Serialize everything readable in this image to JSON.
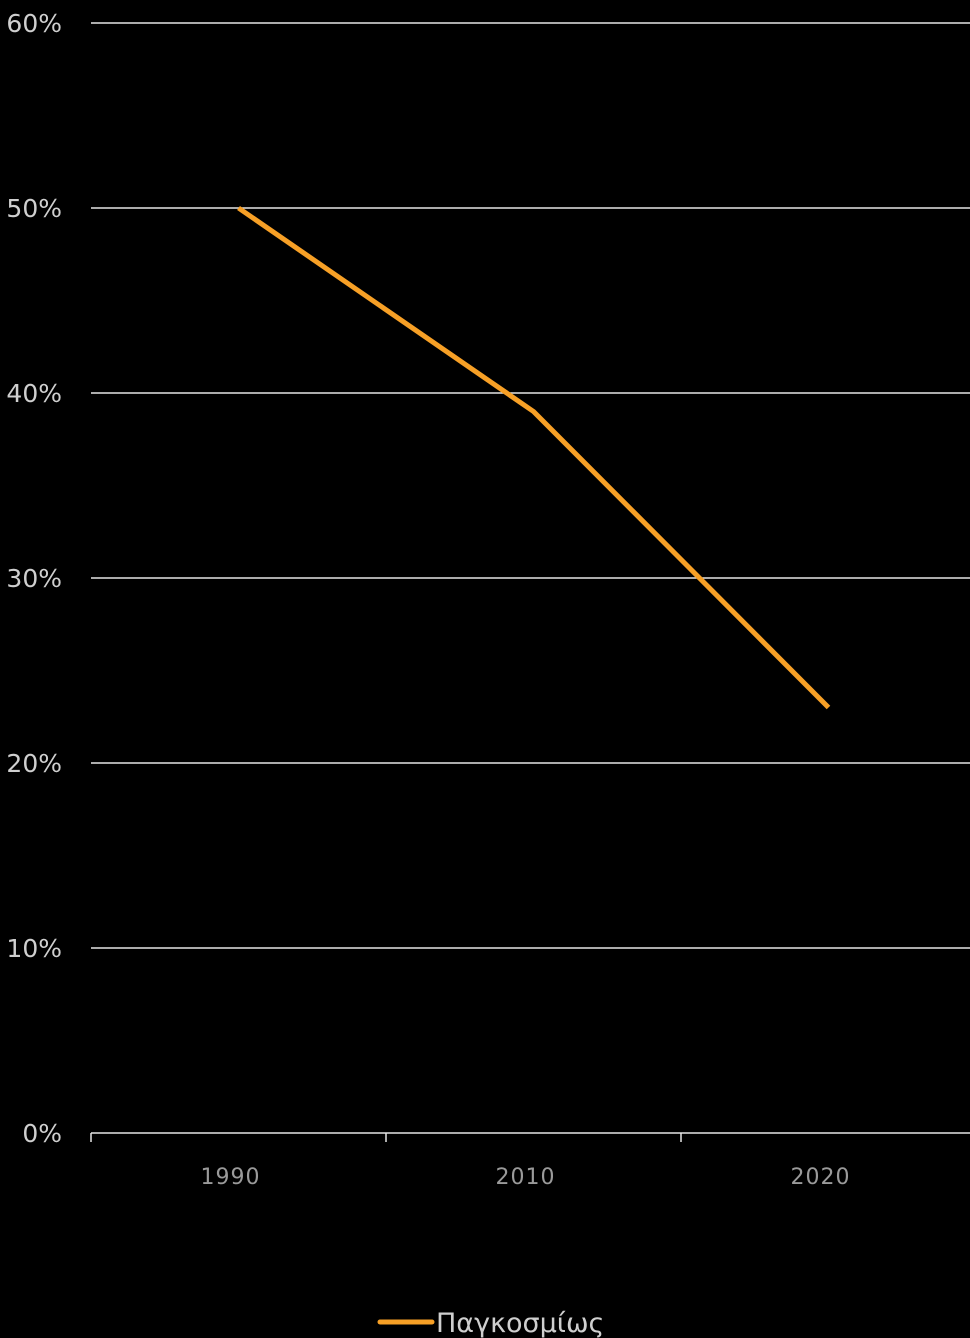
{
  "chart_data": {
    "type": "line",
    "x": [
      "1990",
      "2010",
      "2020"
    ],
    "series": [
      {
        "name": "Παγκοσμίως",
        "values": [
          50,
          39,
          23
        ],
        "color": "#f7a026"
      }
    ],
    "y_ticks": [
      "0%",
      "10%",
      "20%",
      "30%",
      "40%",
      "50%",
      "60%"
    ],
    "ylim": [
      0,
      60
    ],
    "y_unit": "%",
    "grid": true,
    "legend_position": "bottom",
    "colors": {
      "background": "#000000",
      "grid": "#e6e6e6",
      "line": "#f7a026"
    }
  }
}
